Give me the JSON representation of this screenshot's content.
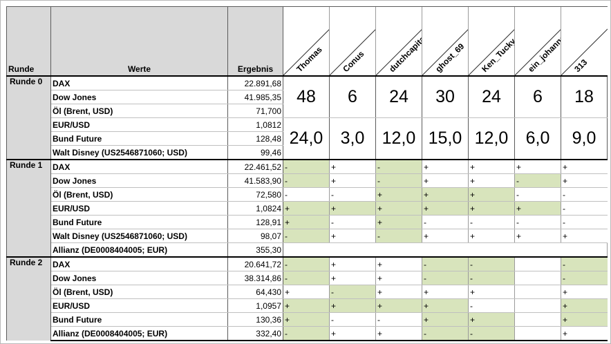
{
  "headers": {
    "runde": "Runde",
    "werte": "Werte",
    "ergebnis": "Ergebnis"
  },
  "players": [
    "Thomas",
    "Conus",
    "dutchcapitalist",
    "ghost_69",
    "Ken_Tucky",
    "ein_johannes",
    "313"
  ],
  "rounds": [
    {
      "label": "Runde 0",
      "rows": [
        {
          "name": "DAX",
          "value": "22.891,68"
        },
        {
          "name": "Dow Jones",
          "value": "41.985,35"
        },
        {
          "name": "Öl (Brent, USD)",
          "value": "71,700"
        },
        {
          "name": "EUR/USD",
          "value": "1,0812"
        },
        {
          "name": "Bund Future",
          "value": "128,48"
        },
        {
          "name": "Walt Disney (US2546871060; USD)",
          "value": "99,46"
        }
      ],
      "points": [
        "48",
        "6",
        "24",
        "30",
        "24",
        "6",
        "18"
      ],
      "averages": [
        "24,0",
        "3,0",
        "12,0",
        "15,0",
        "12,0",
        "6,0",
        "9,0"
      ]
    },
    {
      "label": "Runde 1",
      "rows": [
        {
          "name": "DAX",
          "value": "22.461,52",
          "tips": [
            "-",
            "+",
            "-",
            "+",
            "+",
            "+",
            "+"
          ],
          "green": [
            1,
            0,
            1,
            0,
            0,
            0,
            0
          ]
        },
        {
          "name": "Dow Jones",
          "value": "41.583,90",
          "tips": [
            "-",
            "+",
            "-",
            "+",
            "+",
            "-",
            "+"
          ],
          "green": [
            1,
            0,
            1,
            0,
            0,
            1,
            0
          ]
        },
        {
          "name": "Öl (Brent, USD)",
          "value": "72,580",
          "tips": [
            "-",
            "-",
            "+",
            "+",
            "+",
            "-",
            "-"
          ],
          "green": [
            0,
            0,
            1,
            1,
            1,
            0,
            0
          ]
        },
        {
          "name": "EUR/USD",
          "value": "1,0824",
          "tips": [
            "+",
            "+",
            "+",
            "+",
            "+",
            "+",
            "-"
          ],
          "green": [
            1,
            1,
            1,
            1,
            1,
            1,
            0
          ]
        },
        {
          "name": "Bund Future",
          "value": "128,91",
          "tips": [
            "+",
            "-",
            "+",
            "-",
            "-",
            "-",
            "-"
          ],
          "green": [
            1,
            0,
            1,
            0,
            0,
            0,
            0
          ]
        },
        {
          "name": "Walt Disney (US2546871060; USD)",
          "value": "98,07",
          "tips": [
            "-",
            "+",
            "-",
            "+",
            "+",
            "+",
            "+"
          ],
          "green": [
            1,
            0,
            1,
            0,
            0,
            0,
            0
          ]
        },
        {
          "name": "Allianz (DE0008404005; EUR)",
          "value": "355,30",
          "tips": [
            "",
            "",
            "",
            "",
            "",
            "",
            ""
          ],
          "green": [
            0,
            0,
            0,
            0,
            0,
            0,
            0
          ]
        }
      ]
    },
    {
      "label": "Runde 2",
      "rows": [
        {
          "name": "DAX",
          "value": "20.641,72",
          "tips": [
            "-",
            "+",
            "+",
            "-",
            "-",
            "",
            "-"
          ],
          "green": [
            1,
            0,
            0,
            1,
            1,
            0,
            1
          ]
        },
        {
          "name": "Dow Jones",
          "value": "38.314,86",
          "tips": [
            "-",
            "+",
            "+",
            "-",
            "-",
            "",
            "-"
          ],
          "green": [
            1,
            0,
            0,
            1,
            1,
            0,
            1
          ]
        },
        {
          "name": "Öl (Brent, USD)",
          "value": "64,430",
          "tips": [
            "+",
            "-",
            "+",
            "+",
            "+",
            "",
            "+"
          ],
          "green": [
            0,
            1,
            0,
            0,
            0,
            0,
            0
          ]
        },
        {
          "name": "EUR/USD",
          "value": "1,0957",
          "tips": [
            "+",
            "+",
            "+",
            "+",
            "-",
            "",
            "+"
          ],
          "green": [
            1,
            1,
            1,
            1,
            0,
            0,
            1
          ]
        },
        {
          "name": "Bund Future",
          "value": "130,36",
          "tips": [
            "+",
            "-",
            "-",
            "+",
            "+",
            "",
            "+"
          ],
          "green": [
            1,
            0,
            0,
            1,
            1,
            0,
            1
          ]
        },
        {
          "name": "Allianz (DE0008404005; EUR)",
          "value": "332,40",
          "tips": [
            "-",
            "+",
            "+",
            "-",
            "-",
            "",
            "+"
          ],
          "green": [
            1,
            0,
            0,
            1,
            1,
            0,
            0
          ]
        }
      ]
    }
  ]
}
